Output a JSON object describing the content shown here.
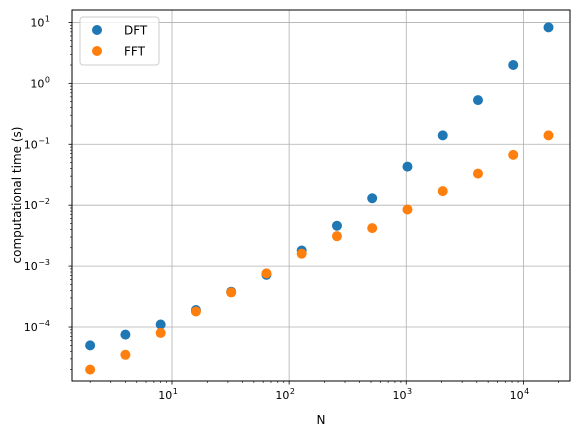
{
  "chart_data": {
    "type": "scatter",
    "title": "",
    "xlabel": "N",
    "ylabel": "computational time (s)",
    "x_scale": "log",
    "y_scale": "log",
    "xlim": [
      1.4,
      25000
    ],
    "ylim": [
      1.3e-05,
      16
    ],
    "grid": true,
    "legend_position": "top-left",
    "x_ticks": [
      {
        "value": 10,
        "base": "10",
        "exp": "1"
      },
      {
        "value": 100,
        "base": "10",
        "exp": "2"
      },
      {
        "value": 1000,
        "base": "10",
        "exp": "3"
      },
      {
        "value": 10000,
        "base": "10",
        "exp": "4"
      }
    ],
    "y_ticks": [
      {
        "value": 0.0001,
        "base": "10",
        "exp": "−4"
      },
      {
        "value": 0.001,
        "base": "10",
        "exp": "−3"
      },
      {
        "value": 0.01,
        "base": "10",
        "exp": "−2"
      },
      {
        "value": 0.1,
        "base": "10",
        "exp": "−1"
      },
      {
        "value": 1,
        "base": "10",
        "exp": "0"
      },
      {
        "value": 10,
        "base": "10",
        "exp": "1"
      }
    ],
    "x": [
      2,
      4,
      8,
      16,
      32,
      64,
      128,
      256,
      512,
      1024,
      2048,
      4096,
      8192,
      16384
    ],
    "series": [
      {
        "name": "DFT",
        "color": "#1f77b4",
        "values": [
          5e-05,
          7.5e-05,
          0.00011,
          0.00019,
          0.00038,
          0.00072,
          0.0018,
          0.0046,
          0.013,
          0.043,
          0.14,
          0.53,
          2.0,
          8.3
        ]
      },
      {
        "name": "FFT",
        "color": "#ff7f0e",
        "values": [
          2e-05,
          3.5e-05,
          8e-05,
          0.00018,
          0.00037,
          0.00076,
          0.0016,
          0.0031,
          0.0042,
          0.0085,
          0.017,
          0.033,
          0.067,
          0.14
        ]
      }
    ]
  }
}
